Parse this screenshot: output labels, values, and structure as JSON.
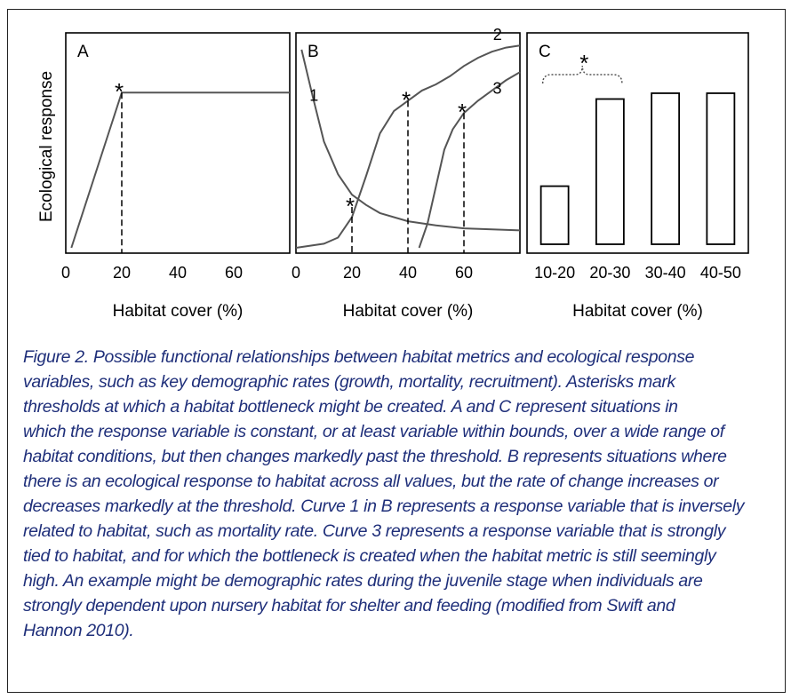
{
  "chart_data": [
    {
      "type": "line",
      "panel_label": "A",
      "ylabel": "Ecological response",
      "xlabel": "Habitat cover (%)",
      "x_ticks": [
        "0",
        "20",
        "40",
        "60"
      ],
      "xlim": [
        0,
        80
      ],
      "ylim": [
        0,
        1
      ],
      "series": [
        {
          "points": [
            [
              2,
              0.0
            ],
            [
              20,
              0.76
            ],
            [
              80,
              0.76
            ]
          ]
        }
      ],
      "thresholds": [
        {
          "x": 20,
          "y": 0.76,
          "marker": "*"
        }
      ]
    },
    {
      "type": "line",
      "panel_label": "B",
      "xlabel": "Habitat cover (%)",
      "x_ticks": [
        "0",
        "20",
        "40",
        "60"
      ],
      "xlim": [
        0,
        80
      ],
      "ylim": [
        0,
        1
      ],
      "series": [
        {
          "name": "1",
          "points": [
            [
              2,
              0.97
            ],
            [
              6,
              0.74
            ],
            [
              10,
              0.52
            ],
            [
              15,
              0.36
            ],
            [
              20,
              0.26
            ],
            [
              25,
              0.21
            ],
            [
              30,
              0.17
            ],
            [
              40,
              0.13
            ],
            [
              50,
              0.11
            ],
            [
              60,
              0.095
            ],
            [
              70,
              0.09
            ],
            [
              80,
              0.085
            ]
          ]
        },
        {
          "name": "2",
          "points": [
            [
              0,
              0.0
            ],
            [
              10,
              0.02
            ],
            [
              15,
              0.05
            ],
            [
              20,
              0.15
            ],
            [
              25,
              0.35
            ],
            [
              30,
              0.56
            ],
            [
              35,
              0.67
            ],
            [
              40,
              0.72
            ],
            [
              45,
              0.77
            ],
            [
              50,
              0.8
            ],
            [
              55,
              0.84
            ],
            [
              60,
              0.89
            ],
            [
              65,
              0.93
            ],
            [
              70,
              0.96
            ],
            [
              75,
              0.98
            ],
            [
              80,
              0.99
            ]
          ]
        },
        {
          "name": "3",
          "points": [
            [
              44,
              0.0
            ],
            [
              47,
              0.12
            ],
            [
              50,
              0.3
            ],
            [
              53,
              0.48
            ],
            [
              56,
              0.58
            ],
            [
              60,
              0.66
            ],
            [
              65,
              0.72
            ],
            [
              70,
              0.77
            ],
            [
              75,
              0.82
            ],
            [
              80,
              0.86
            ]
          ]
        }
      ],
      "thresholds": [
        {
          "x": 20,
          "y": 0.2,
          "marker": "*"
        },
        {
          "x": 40,
          "y": 0.72,
          "marker": "*"
        },
        {
          "x": 60,
          "y": 0.66,
          "marker": "*"
        }
      ]
    },
    {
      "type": "bar",
      "panel_label": "C",
      "xlabel": "Habitat cover (%)",
      "categories": [
        "10-20",
        "20-30",
        "30-40",
        "40-50"
      ],
      "values": [
        0.3,
        0.75,
        0.78,
        0.78
      ],
      "ylim": [
        0,
        1
      ],
      "thresholds": [
        {
          "between": [
            "10-20",
            "20-30"
          ],
          "marker": "*"
        }
      ]
    }
  ],
  "caption": {
    "lines": [
      "Figure 2. Possible functional relationships between habitat metrics and ecological response",
      "variables, such as key demographic rates (growth, mortality, recruitment). Asterisks mark",
      "thresholds at which a habitat bottleneck might be created. A and C represent situations in",
      "which the response variable is constant, or at least variable within bounds, over a wide range of",
      "habitat conditions, but then changes markedly past the threshold. B represents situations where",
      "there is an ecological response to habitat across all values, but the rate of change increases or",
      "decreases markedly at the threshold. Curve 1 in B represents a response variable that is inversely",
      "related to habitat, such as mortality rate. Curve 3 represents a response variable that is strongly",
      "tied to habitat, and for which the bottleneck is created when the habitat metric is still seemingly",
      "high. An example might be demographic rates during the juvenile stage when individuals are",
      "strongly dependent upon nursery habitat for shelter and feeding (modified from Swift and",
      "Hannon 2010)."
    ]
  }
}
